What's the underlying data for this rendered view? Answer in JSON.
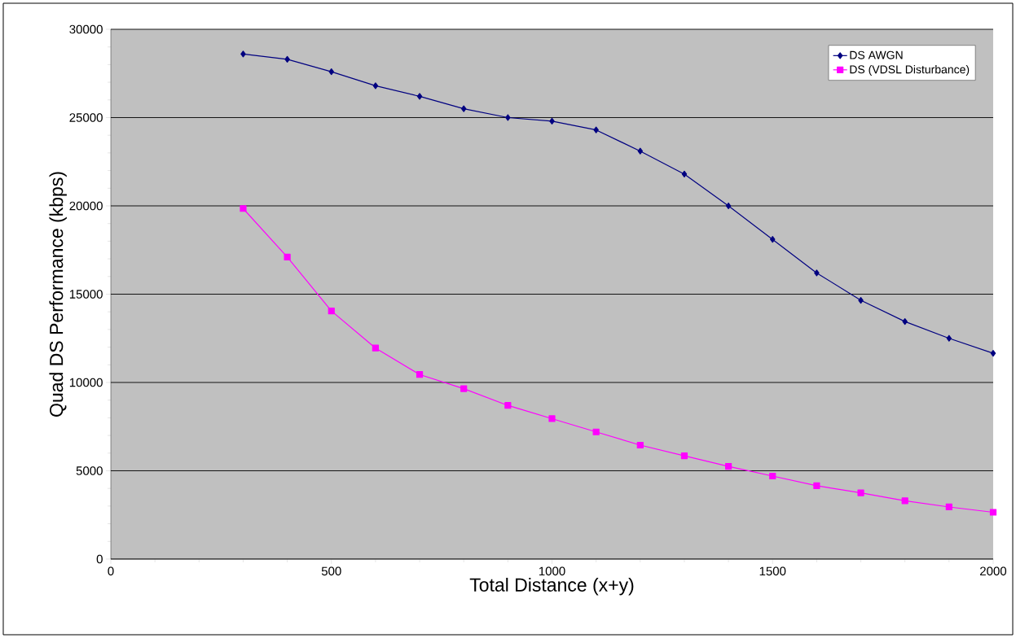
{
  "chart_data": {
    "type": "line",
    "xlabel": "Total Distance (x+y)",
    "ylabel": "Quad DS Performance (kbps)",
    "x": [
      300,
      400,
      500,
      600,
      700,
      800,
      900,
      1000,
      1100,
      1200,
      1300,
      1400,
      1500,
      1600,
      1700,
      1800,
      1900,
      2000
    ],
    "series": [
      {
        "name": "DS AWGN",
        "color": "#000080",
        "marker": "diamond",
        "values": [
          28600,
          28300,
          27600,
          26800,
          26200,
          25500,
          25000,
          24800,
          24300,
          23100,
          21800,
          20000,
          18100,
          16200,
          14650,
          13450,
          12500,
          11650
        ]
      },
      {
        "name": "DS (VDSL Disturbance)",
        "color": "#ff00ff",
        "marker": "square",
        "values": [
          19850,
          17100,
          14050,
          11950,
          10450,
          9650,
          8700,
          7950,
          7200,
          6450,
          5850,
          5250,
          4700,
          4150,
          3750,
          3300,
          2950,
          2650
        ]
      }
    ],
    "xlim": [
      0,
      2000
    ],
    "xticks": [
      0,
      500,
      1000,
      1500,
      2000
    ],
    "ylim": [
      0,
      30000
    ],
    "yticks": [
      0,
      5000,
      10000,
      15000,
      20000,
      25000,
      30000
    ],
    "grid": "y",
    "legend": "top right"
  }
}
